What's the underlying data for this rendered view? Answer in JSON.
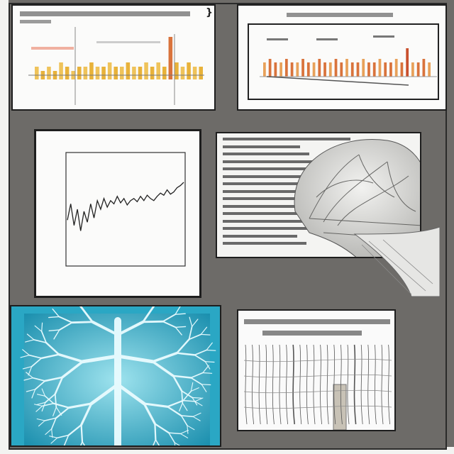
{
  "icons": {
    "corner_top_left": "brace-icon",
    "corner_top_right": "brace-icon"
  },
  "panels": {
    "bar_chart_left": {
      "title": ""
    },
    "bar_chart_right": {
      "title": ""
    },
    "line_chart": {
      "title": ""
    },
    "anatomy_illustration": {
      "text_lines": 15
    },
    "vascular_xray": {},
    "nerve_diagram": {}
  },
  "colors": {
    "background": "#6e6c69",
    "bar_yellow": "#e8b23a",
    "bar_orange": "#d9733c",
    "xray_cyan": "#2aa7c4"
  },
  "chart_data": [
    {
      "type": "bar",
      "title": "",
      "values": [
        3,
        2,
        3,
        2,
        4,
        3,
        2,
        3,
        3,
        4,
        3,
        3,
        4,
        3,
        3,
        4,
        3,
        3,
        4,
        3,
        4,
        3,
        10,
        4,
        3,
        4,
        3,
        3
      ],
      "highlight_index": 22
    },
    {
      "type": "bar",
      "title": "",
      "values": [
        4,
        5,
        4,
        4,
        5,
        4,
        4,
        5,
        4,
        4,
        5,
        4,
        4,
        5,
        4,
        5,
        4,
        4,
        5,
        4,
        4,
        5,
        4,
        4,
        5,
        4,
        8,
        4,
        4,
        5,
        4
      ],
      "highlight_index": 26
    },
    {
      "type": "line",
      "title": "",
      "y_ticks": [
        "",
        "",
        "",
        "",
        "",
        "",
        ""
      ],
      "x_ticks": [
        "",
        "",
        "",
        "",
        "",
        ""
      ],
      "values": [
        40,
        55,
        35,
        50,
        30,
        48,
        38,
        55,
        42,
        58,
        50,
        60,
        52,
        58,
        55,
        62,
        56,
        60,
        54,
        58,
        60,
        57,
        62,
        58,
        63,
        60,
        58,
        62,
        65,
        63,
        68,
        64,
        66,
        70,
        72,
        75
      ]
    }
  ]
}
